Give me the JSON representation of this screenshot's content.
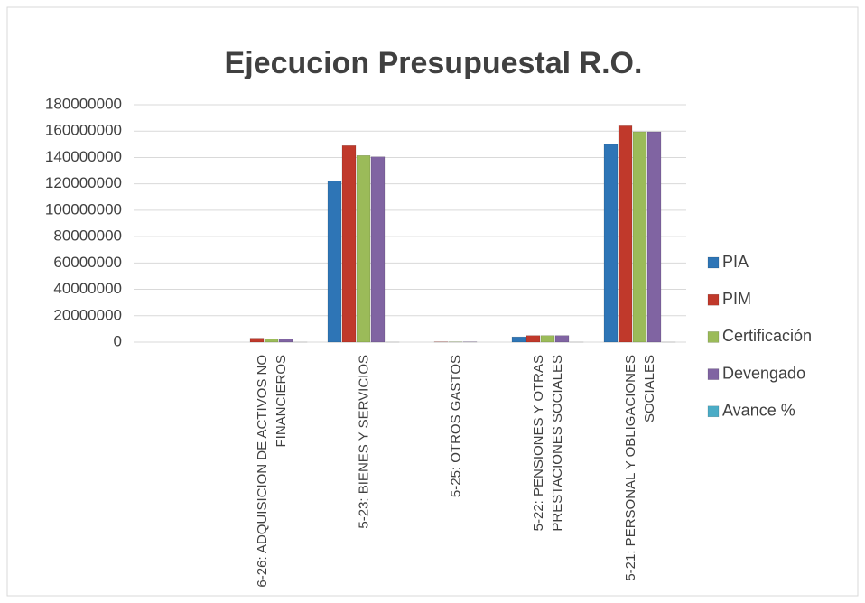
{
  "chart_data": {
    "type": "bar",
    "title": "Ejecucion Presupuestal R.O.",
    "categories": [
      null,
      "6-26: ADQUISICION DE ACTIVOS NO FINANCIEROS",
      "5-23: BIENES Y SERVICIOS",
      "5-25: OTROS GASTOS",
      "5-22: PENSIONES Y OTRAS PRESTACIONES SOCIALES",
      "5-21: PERSONAL Y OBLIGACIONES SOCIALES"
    ],
    "series": [
      {
        "name": "PIA",
        "color": "#2e75b6",
        "values": [
          null,
          0,
          122000000,
          0,
          4000000,
          150000000
        ]
      },
      {
        "name": "PIM",
        "color": "#c0392b",
        "values": [
          null,
          3000000,
          149000000,
          200000,
          5000000,
          164000000
        ]
      },
      {
        "name": "Certificación",
        "color": "#9bbb59",
        "values": [
          null,
          2500000,
          141500000,
          200000,
          5000000,
          159500000
        ]
      },
      {
        "name": "Devengado",
        "color": "#8064a2",
        "values": [
          null,
          2500000,
          140500000,
          200000,
          5000000,
          159500000
        ]
      },
      {
        "name": "Avance %",
        "color": "#4bacc6",
        "values": [
          null,
          90,
          94,
          0,
          98,
          97
        ]
      }
    ],
    "ylim": [
      0,
      180000000
    ],
    "yticks": [
      0,
      20000000,
      40000000,
      60000000,
      80000000,
      100000000,
      120000000,
      140000000,
      160000000,
      180000000
    ],
    "grid": true,
    "legend": "right"
  }
}
